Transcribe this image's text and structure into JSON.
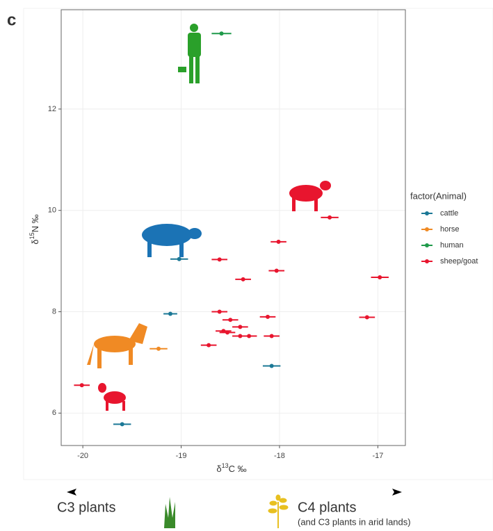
{
  "panel_label": "c",
  "chart_data": {
    "type": "scatter",
    "x_label": {
      "prefix": "δ",
      "sup": "13",
      "suffix": "C ‰"
    },
    "y_label": {
      "prefix": "δ",
      "sup": "15",
      "suffix": "N ‰"
    },
    "xlim": [
      -20.22,
      -16.72
    ],
    "ylim": [
      5.36,
      13.96
    ],
    "xticks": [
      -20,
      -19,
      -18,
      -17
    ],
    "yticks": [
      6,
      8,
      10,
      12
    ],
    "grid": true,
    "legend": {
      "title": "factor(Animal)",
      "position": "right"
    },
    "series": [
      {
        "name": "cattle",
        "color": "#1b7896",
        "x": [
          -19.02,
          -19.11,
          -18.08,
          -19.6
        ],
        "values": [
          9.04,
          7.96,
          6.93,
          5.78
        ],
        "x_err": [
          0.09,
          0.07,
          0.09,
          0.09
        ]
      },
      {
        "name": "horse",
        "color": "#f08a24",
        "x": [
          -19.23
        ],
        "values": [
          7.27
        ],
        "x_err": [
          0.09
        ]
      },
      {
        "name": "human",
        "color": "#1f9a4a",
        "x": [
          -18.59
        ],
        "values": [
          13.49
        ],
        "x_err": [
          0.1
        ]
      },
      {
        "name": "sheep/goat",
        "color": "#e8152e",
        "x": [
          -17.49,
          -18.01,
          -18.61,
          -18.03,
          -18.37,
          -16.98,
          -18.61,
          -18.12,
          -17.11,
          -18.5,
          -18.4,
          -18.57,
          -18.53,
          -18.4,
          -18.31,
          -18.08,
          -18.72,
          -20.01
        ],
        "values": [
          9.86,
          9.38,
          9.03,
          8.81,
          8.64,
          8.68,
          8.0,
          7.9,
          7.89,
          7.84,
          7.7,
          7.62,
          7.59,
          7.52,
          7.52,
          7.52,
          7.34,
          6.55
        ],
        "x_err": [
          0.09,
          0.08,
          0.08,
          0.08,
          0.08,
          0.09,
          0.08,
          0.08,
          0.08,
          0.08,
          0.08,
          0.08,
          0.08,
          0.08,
          0.08,
          0.08,
          0.08,
          0.08
        ]
      }
    ]
  },
  "footer": {
    "left": "C3 plants",
    "right": "C4 plants",
    "right_note": "(and C3 plants in arid lands)"
  }
}
